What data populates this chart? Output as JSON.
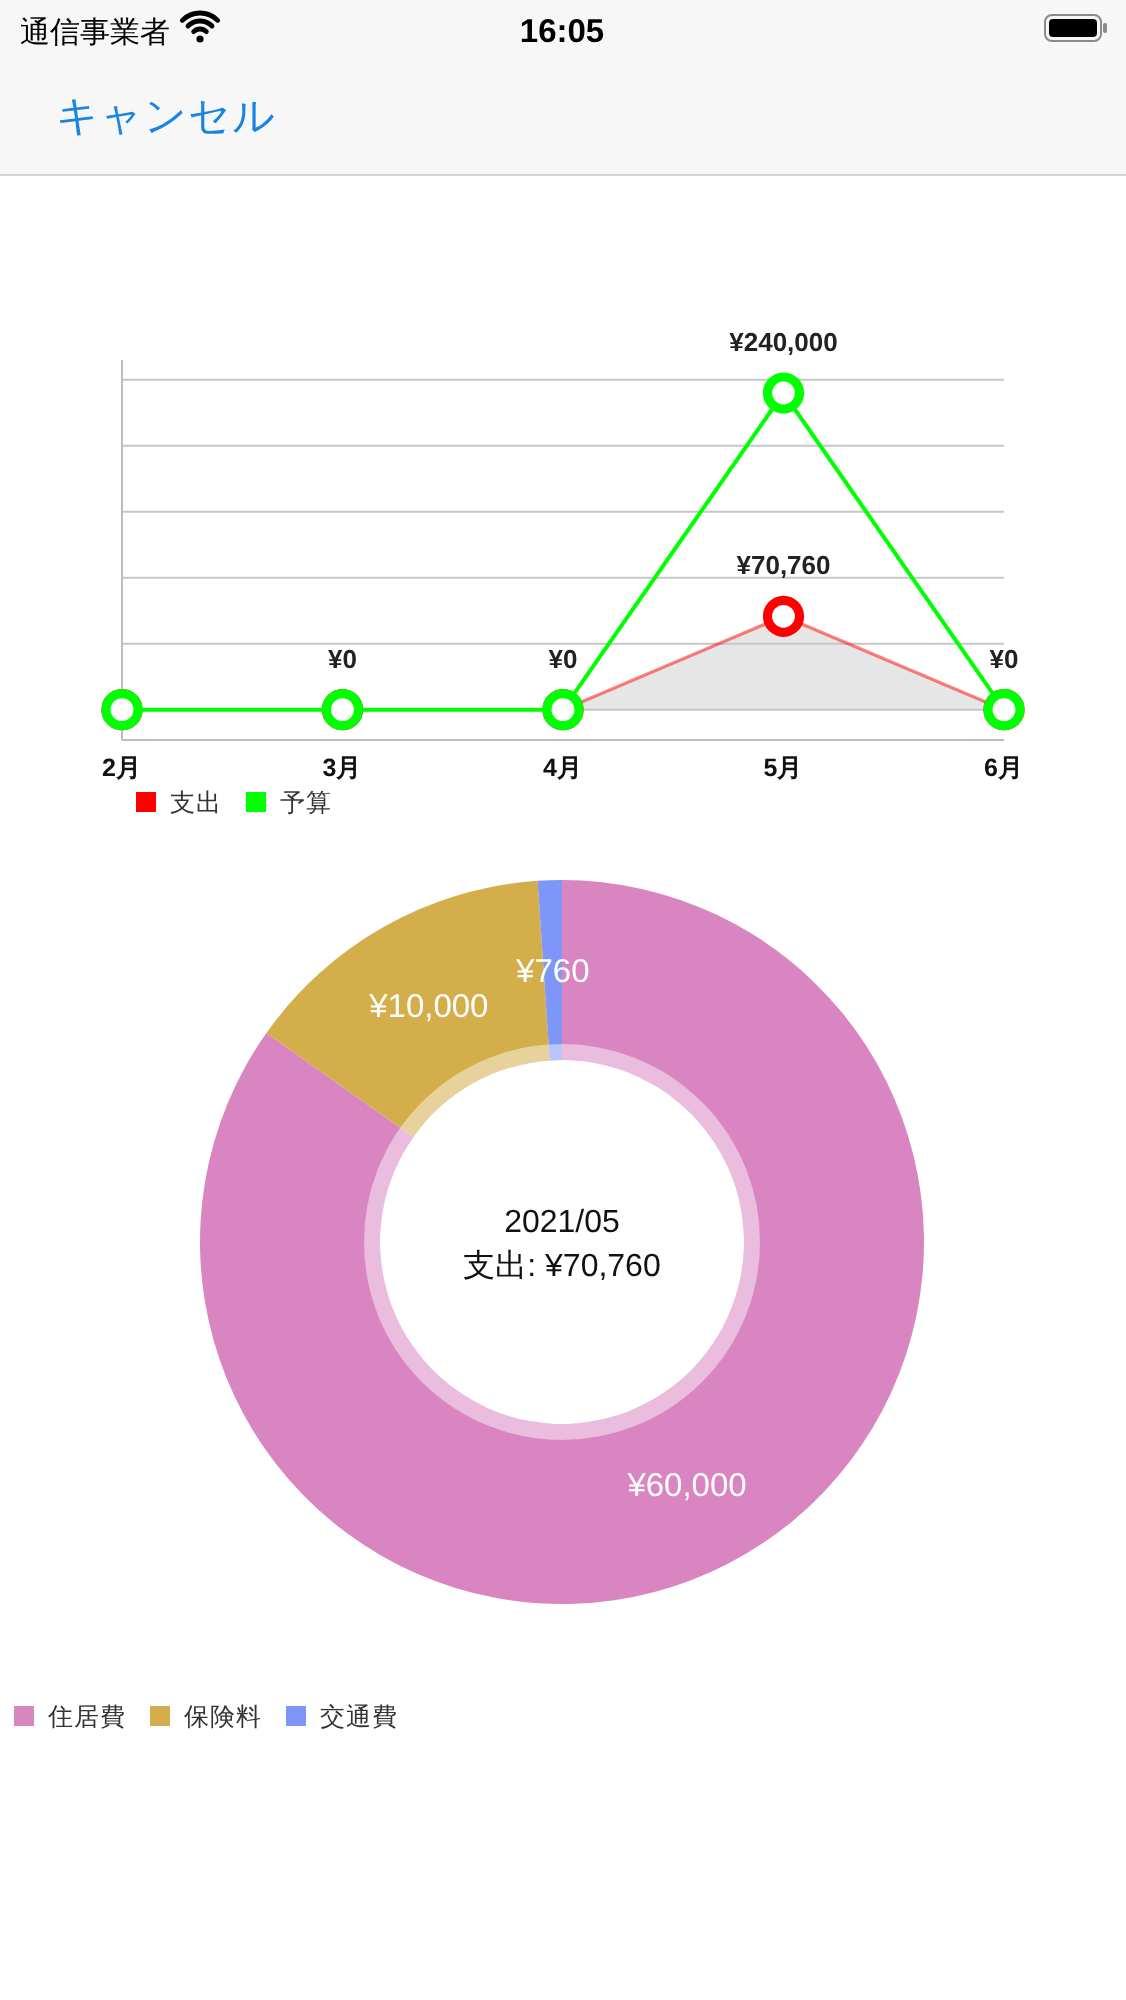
{
  "chart_data": [
    {
      "type": "other",
      "annotations": [
        "通信事業者",
        "16:05",
        "キャンセル"
      ]
    },
    {
      "type": "line",
      "categories": [
        "2月",
        "3月",
        "4月",
        "5月",
        "6月"
      ],
      "series": [
        {
          "name": "支出",
          "type": "area",
          "color": "#ff0000",
          "values": [
            0,
            0,
            0,
            70760,
            0
          ],
          "value_labels": [
            null,
            null,
            null,
            "¥70,760",
            null
          ]
        },
        {
          "name": "予算",
          "color": "#00ff00",
          "values": [
            0,
            0,
            0,
            240000,
            0
          ],
          "value_labels": [
            null,
            "¥0",
            "¥0",
            "¥240,000",
            "¥0"
          ]
        }
      ],
      "ylim": [
        -23000,
        265000
      ],
      "yticks": [
        {
          "value": 0,
          "label": null
        },
        {
          "value": 50000,
          "label": null
        },
        {
          "value": 100000,
          "label": null
        },
        {
          "value": 150000,
          "label": null
        },
        {
          "value": 200000,
          "label": null
        },
        {
          "value": 250000,
          "label": null
        }
      ],
      "grid": "y",
      "tick_labels": "x",
      "legend": "bottom left",
      "marker": "circle"
    },
    {
      "type": "donut",
      "categories": [
        "住居費",
        "保険料",
        "交通費"
      ],
      "values": [
        60000,
        10000,
        760
      ],
      "colors": [
        "#d985c2",
        "#d3ae4b",
        "#7e96f7"
      ],
      "value_labels": [
        "¥60,000",
        "¥10,000",
        "¥760"
      ],
      "annotations": [
        "2021/05",
        "支出: ¥70,760"
      ],
      "legend": "bottom left"
    }
  ]
}
